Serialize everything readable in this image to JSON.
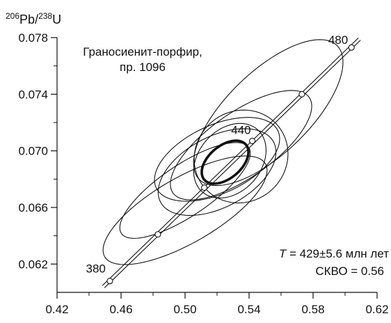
{
  "chart_data": {
    "type": "scatter",
    "subtype": "concordia diagram with error ellipses",
    "y_axis_label": {
      "iso1": "206",
      "el1": "Pb",
      "sep": "/",
      "iso2": "238",
      "el2": "U"
    },
    "x_axis_label": "",
    "title": "Граносиенит-порфир,",
    "subtitle": "пр. 1096",
    "result": {
      "T_symbol": "T",
      "T_text": " = 429±5.6 млн лет",
      "mswd_text": "СКВО = 0.56"
    },
    "xlim": [
      0.42,
      0.62
    ],
    "ylim": [
      0.06,
      0.078
    ],
    "x_ticks": [
      0.42,
      0.46,
      0.5,
      0.54,
      0.58,
      0.62
    ],
    "x_tick_labels": [
      "0.42",
      "0.46",
      "0.50",
      "0.54",
      "0.58",
      "0.62"
    ],
    "x_minor_ticks": [
      0.44,
      0.48,
      0.52,
      0.56,
      0.6
    ],
    "y_ticks": [
      0.062,
      0.066,
      0.07,
      0.074,
      0.078
    ],
    "y_tick_labels": [
      "0.062",
      "0.066",
      "0.070",
      "0.074",
      "0.078"
    ],
    "y_minor_ticks": [
      0.064,
      0.068,
      0.072,
      0.076
    ],
    "concordia_points": [
      {
        "age": 380,
        "x": 0.453,
        "y": 0.0608,
        "label": "380"
      },
      {
        "age": 400,
        "x": 0.483,
        "y": 0.0641,
        "label": ""
      },
      {
        "age": 420,
        "x": 0.512,
        "y": 0.0674,
        "label": ""
      },
      {
        "age": 440,
        "x": 0.542,
        "y": 0.0707,
        "label": "440"
      },
      {
        "age": 460,
        "x": 0.573,
        "y": 0.074,
        "label": ""
      },
      {
        "age": 480,
        "x": 0.604,
        "y": 0.0773,
        "label": "480"
      }
    ],
    "concordia_line": {
      "x": [
        0.449,
        0.609
      ],
      "y": [
        0.0604,
        0.0779
      ]
    },
    "ellipses": [
      {
        "cx": 0.552,
        "cy": 0.0727,
        "semi_a": 0.06,
        "semi_b": 0.0029,
        "angle_deg": 44
      },
      {
        "cx": 0.535,
        "cy": 0.0704,
        "semi_a": 0.052,
        "semi_b": 0.0023,
        "angle_deg": 35
      },
      {
        "cx": 0.52,
        "cy": 0.0694,
        "semi_a": 0.042,
        "semi_b": 0.0024,
        "angle_deg": 25
      },
      {
        "cx": 0.535,
        "cy": 0.0696,
        "semi_a": 0.03,
        "semi_b": 0.0032,
        "angle_deg": 40
      },
      {
        "cx": 0.52,
        "cy": 0.0685,
        "semi_a": 0.04,
        "semi_b": 0.0025,
        "angle_deg": 28
      },
      {
        "cx": 0.5,
        "cy": 0.0658,
        "semi_a": 0.058,
        "semi_b": 0.0023,
        "angle_deg": 30
      },
      {
        "cx": 0.5,
        "cy": 0.0672,
        "semi_a": 0.048,
        "semi_b": 0.0018,
        "angle_deg": 34
      },
      {
        "cx": 0.528,
        "cy": 0.0693,
        "semi_a": 0.026,
        "semi_b": 0.0022,
        "angle_deg": 48
      }
    ],
    "mean_ellipse": {
      "cx": 0.525,
      "cy": 0.0692,
      "semi_a": 0.017,
      "semi_b": 0.00115,
      "angle_deg": 40
    },
    "colors": {
      "ink": "#111111",
      "background": "#ffffff"
    }
  }
}
